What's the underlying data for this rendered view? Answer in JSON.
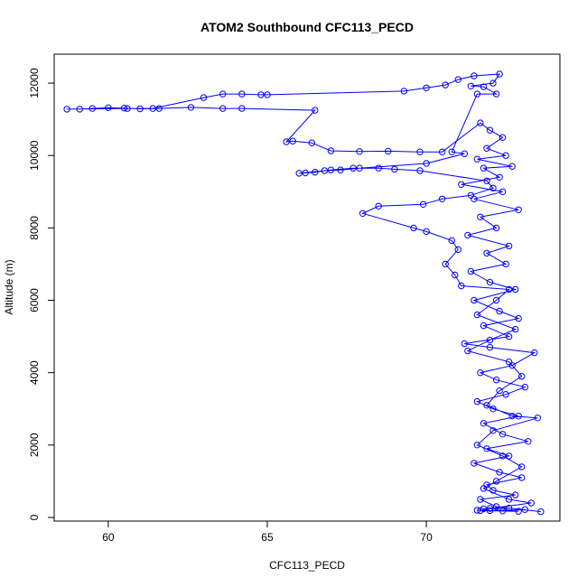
{
  "chart_data": {
    "type": "scatter",
    "title": "ATOM2 Southbound CFC113_PECD",
    "xlabel": "CFC113_PECD",
    "ylabel": "Altitude (m)",
    "xlim": [
      58.3,
      74.2
    ],
    "ylim": [
      -100,
      12800
    ],
    "x_ticks": [
      60,
      65,
      70
    ],
    "y_ticks": [
      0,
      2000,
      4000,
      6000,
      8000,
      10000,
      12000
    ],
    "point_marker": "open-circle",
    "connect_points": true,
    "series_color": "#0000ff",
    "series": [
      {
        "name": "",
        "points": [
          [
            71.6,
            200
          ],
          [
            72.4,
            180
          ],
          [
            73.1,
            220
          ],
          [
            72.0,
            190
          ],
          [
            71.8,
            240
          ],
          [
            72.6,
            260
          ],
          [
            73.6,
            160
          ],
          [
            72.2,
            300
          ],
          [
            71.7,
            500
          ],
          [
            72.8,
            620
          ],
          [
            72.1,
            750
          ],
          [
            71.9,
            900
          ],
          [
            73.0,
            1100
          ],
          [
            72.3,
            1250
          ],
          [
            71.5,
            1500
          ],
          [
            72.6,
            1700
          ],
          [
            71.9,
            1900
          ],
          [
            73.2,
            2100
          ],
          [
            72.4,
            2300
          ],
          [
            71.8,
            2600
          ],
          [
            72.9,
            2800
          ],
          [
            72.1,
            3000
          ],
          [
            71.6,
            3200
          ],
          [
            72.5,
            3400
          ],
          [
            73.1,
            3600
          ],
          [
            72.2,
            3800
          ],
          [
            71.7,
            4000
          ],
          [
            72.7,
            4200
          ],
          [
            73.4,
            4550
          ],
          [
            72.0,
            4700
          ],
          [
            71.2,
            4800
          ],
          [
            72.6,
            5000
          ],
          [
            71.8,
            5300
          ],
          [
            72.9,
            5500
          ],
          [
            72.3,
            5700
          ],
          [
            71.5,
            6000
          ],
          [
            72.8,
            6300
          ],
          [
            72.0,
            6500
          ],
          [
            71.4,
            6800
          ],
          [
            72.5,
            7000
          ],
          [
            71.9,
            7300
          ],
          [
            72.6,
            7500
          ],
          [
            71.3,
            7800
          ],
          [
            72.2,
            8000
          ],
          [
            71.7,
            8300
          ],
          [
            72.9,
            8500
          ],
          [
            71.5,
            8800
          ],
          [
            72.4,
            9000
          ],
          [
            71.1,
            9200
          ],
          [
            72.3,
            9400
          ],
          [
            71.8,
            9650
          ],
          [
            72.7,
            9700
          ],
          [
            71.6,
            9900
          ],
          [
            72.5,
            10000
          ],
          [
            71.9,
            10200
          ],
          [
            72.4,
            10500
          ],
          [
            72.0,
            10700
          ],
          [
            71.7,
            10900
          ],
          [
            70.5,
            10100
          ],
          [
            69.8,
            10100
          ],
          [
            68.8,
            10120
          ],
          [
            67.9,
            10110
          ],
          [
            67.0,
            10130
          ],
          [
            66.4,
            10350
          ],
          [
            65.8,
            10400
          ],
          [
            65.6,
            10380
          ],
          [
            66.5,
            11250
          ],
          [
            64.2,
            11300
          ],
          [
            63.6,
            11300
          ],
          [
            62.6,
            11330
          ],
          [
            61.6,
            11300
          ],
          [
            61.0,
            11290
          ],
          [
            60.5,
            11310
          ],
          [
            60.0,
            11320
          ],
          [
            59.5,
            11300
          ],
          [
            59.1,
            11280
          ],
          [
            58.7,
            11280
          ],
          [
            60.6,
            11300
          ],
          [
            61.4,
            11300
          ],
          [
            63.0,
            11600
          ],
          [
            63.6,
            11700
          ],
          [
            64.2,
            11700
          ],
          [
            64.8,
            11680
          ],
          [
            65.0,
            11680
          ],
          [
            69.3,
            11780
          ],
          [
            70.0,
            11870
          ],
          [
            70.6,
            11950
          ],
          [
            71.0,
            12100
          ],
          [
            71.5,
            12200
          ],
          [
            72.3,
            12250
          ],
          [
            72.1,
            12000
          ],
          [
            71.4,
            11920
          ],
          [
            71.8,
            11900
          ],
          [
            72.2,
            11700
          ],
          [
            71.6,
            11700
          ],
          [
            70.8,
            10100
          ],
          [
            71.2,
            10050
          ],
          [
            70.0,
            9780
          ],
          [
            67.9,
            9650
          ],
          [
            67.3,
            9600
          ],
          [
            66.8,
            9580
          ],
          [
            66.5,
            9540
          ],
          [
            66.2,
            9520
          ],
          [
            66.0,
            9510
          ],
          [
            67.0,
            9600
          ],
          [
            67.7,
            9650
          ],
          [
            68.5,
            9650
          ],
          [
            69.0,
            9620
          ],
          [
            69.8,
            9580
          ],
          [
            71.9,
            9300
          ],
          [
            72.1,
            9100
          ],
          [
            71.4,
            8900
          ],
          [
            70.5,
            8800
          ],
          [
            69.9,
            8650
          ],
          [
            68.5,
            8600
          ],
          [
            68.0,
            8400
          ],
          [
            69.6,
            8000
          ],
          [
            70.0,
            7900
          ],
          [
            70.8,
            7650
          ],
          [
            71.0,
            7400
          ],
          [
            70.6,
            7000
          ],
          [
            70.9,
            6700
          ],
          [
            71.1,
            6400
          ],
          [
            72.6,
            6300
          ],
          [
            72.2,
            6000
          ],
          [
            71.6,
            5600
          ],
          [
            72.8,
            5200
          ],
          [
            72.0,
            4900
          ],
          [
            71.3,
            4600
          ],
          [
            72.6,
            4300
          ],
          [
            73.0,
            3900
          ],
          [
            72.3,
            3500
          ],
          [
            71.9,
            3100
          ],
          [
            72.7,
            2800
          ],
          [
            73.5,
            2750
          ],
          [
            72.1,
            2400
          ],
          [
            71.6,
            2000
          ],
          [
            72.4,
            1700
          ],
          [
            73.0,
            1400
          ],
          [
            72.2,
            1000
          ],
          [
            71.8,
            800
          ],
          [
            72.6,
            500
          ],
          [
            73.3,
            400
          ],
          [
            72.0,
            250
          ],
          [
            71.7,
            190
          ],
          [
            72.9,
            170
          ]
        ]
      }
    ]
  }
}
